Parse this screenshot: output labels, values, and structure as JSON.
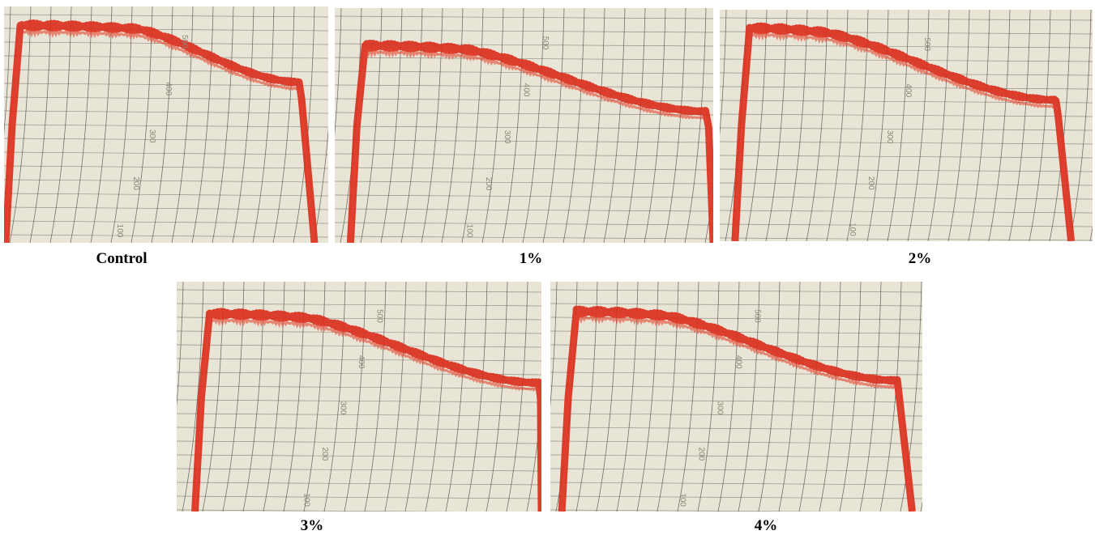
{
  "panels": [
    {
      "caption": "Control",
      "scale_labels": [
        "500",
        "400",
        "300",
        "200",
        "100"
      ]
    },
    {
      "caption": "1%",
      "scale_labels": [
        "500",
        "400",
        "300",
        "200",
        "100"
      ]
    },
    {
      "caption": "2%",
      "scale_labels": [
        "500",
        "400",
        "300",
        "200",
        "100"
      ]
    },
    {
      "caption": "3%",
      "scale_labels": [
        "500",
        "400",
        "300",
        "200",
        "100"
      ]
    },
    {
      "caption": "4%",
      "scale_labels": [
        "500",
        "400",
        "300",
        "200",
        "100"
      ]
    }
  ]
}
